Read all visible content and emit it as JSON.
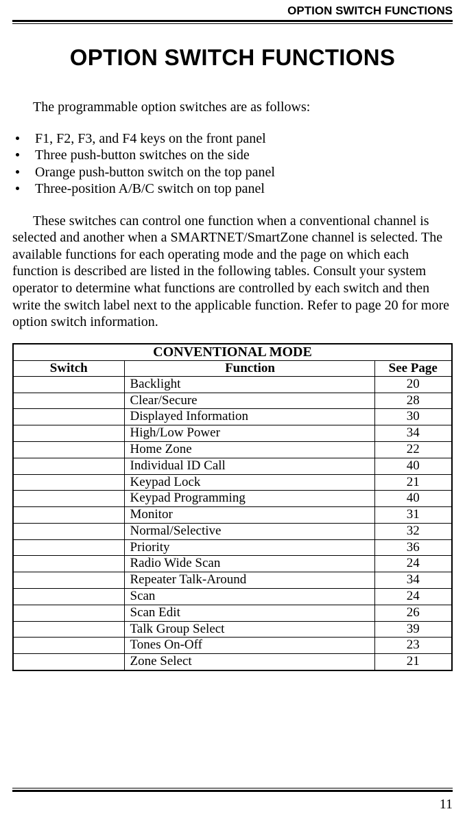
{
  "runningHead": "OPTION SWITCH FUNCTIONS",
  "chapterTitle": "OPTION SWITCH FUNCTIONS",
  "intro": "The programmable option switches are as follows:",
  "bullets": [
    "F1, F2, F3, and F4 keys on the front panel",
    "Three push-button switches on the side",
    "Orange push-button switch on the top panel",
    "Three-position A/B/C switch on top panel"
  ],
  "para": "These switches can control one function when a conventional channel is selected and another when a SMARTNET/SmartZone channel is selected. The available functions for each operating mode and the page on which each function is described are listed in the following tables. Consult your system operator to determine what functions are controlled by each switch and then write the switch label next to the applicable func­tion. Refer to page 20 for more option switch information.",
  "table": {
    "title": "CONVENTIONAL MODE",
    "headers": {
      "switch": "Switch",
      "function": "Function",
      "page": "See Page"
    },
    "rows": [
      {
        "switch": "",
        "function": "Backlight",
        "page": "20"
      },
      {
        "switch": "",
        "function": "Clear/Secure",
        "page": "28"
      },
      {
        "switch": "",
        "function": "Displayed Information",
        "page": "30"
      },
      {
        "switch": "",
        "function": "High/Low Power",
        "page": "34"
      },
      {
        "switch": "",
        "function": "Home Zone",
        "page": "22"
      },
      {
        "switch": "",
        "function": "Individual ID Call",
        "page": "40"
      },
      {
        "switch": "",
        "function": "Keypad Lock",
        "page": "21"
      },
      {
        "switch": "",
        "function": "Keypad Programming",
        "page": "40"
      },
      {
        "switch": "",
        "function": "Monitor",
        "page": "31"
      },
      {
        "switch": "",
        "function": "Normal/Selective",
        "page": "32"
      },
      {
        "switch": "",
        "function": "Priority",
        "page": "36"
      },
      {
        "switch": "",
        "function": "Radio Wide Scan",
        "page": "24"
      },
      {
        "switch": "",
        "function": "Repeater Talk-Around",
        "page": "34"
      },
      {
        "switch": "",
        "function": "Scan",
        "page": "24"
      },
      {
        "switch": "",
        "function": "Scan Edit",
        "page": "26"
      },
      {
        "switch": "",
        "function": "Talk Group Select",
        "page": "39"
      },
      {
        "switch": "",
        "function": "Tones On-Off",
        "page": "23"
      },
      {
        "switch": "",
        "function": "Zone Select",
        "page": "21"
      }
    ]
  },
  "pageNumber": "11"
}
